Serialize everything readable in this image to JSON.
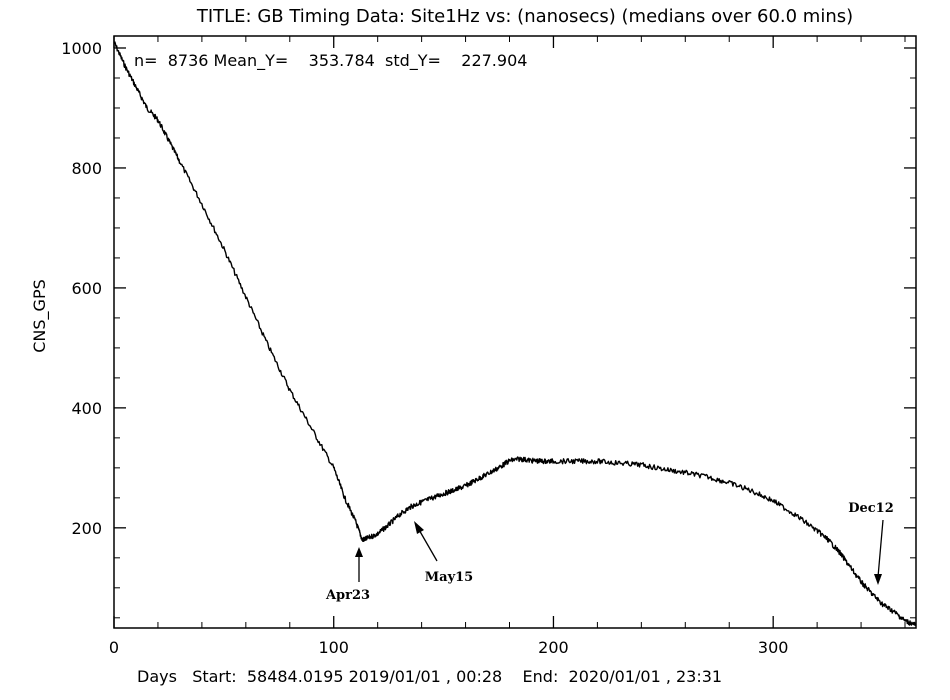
{
  "chart_data": {
    "type": "line",
    "title": "TITLE: GB Timing Data: Site1Hz vs: (nanosecs) (medians over 60.0 mins)",
    "stats_text": "n=  8736 Mean_Y=    353.784  std_Y=    227.904",
    "xlabel": "Days   Start:  58484.0195 2019/01/01 , 00:28    End:  2020/01/01 , 23:31",
    "ylabel": "CNS_GPS",
    "xlim": [
      0,
      365
    ],
    "ylim": [
      33,
      1020
    ],
    "x_ticks": [
      0,
      100,
      200,
      300
    ],
    "x_tick_labels": [
      "0",
      "100",
      "200",
      "300"
    ],
    "y_ticks": [
      200,
      400,
      600,
      800,
      1000
    ],
    "y_tick_labels": [
      "200",
      "400",
      "600",
      "800",
      "1000"
    ],
    "grid": false,
    "series": [
      {
        "values_x": [
          0,
          5,
          10,
          15,
          20,
          25,
          30,
          40,
          50,
          60,
          70,
          80,
          90,
          100,
          105,
          110,
          113,
          115,
          120,
          125,
          130,
          135,
          140,
          145,
          150,
          155,
          160,
          165,
          170,
          175,
          180,
          185,
          190,
          195,
          200,
          210,
          220,
          230,
          240,
          250,
          260,
          270,
          280,
          290,
          300,
          310,
          320,
          325,
          330,
          335,
          340,
          345,
          350,
          355,
          360,
          365
        ],
        "values_y": [
          1010,
          970,
          935,
          900,
          880,
          845,
          810,
          740,
          665,
          585,
          505,
          430,
          365,
          300,
          250,
          210,
          180,
          182,
          190,
          205,
          222,
          235,
          243,
          250,
          257,
          263,
          270,
          280,
          290,
          300,
          312,
          315,
          312,
          311,
          311,
          311,
          311,
          308,
          305,
          298,
          292,
          285,
          275,
          262,
          245,
          222,
          195,
          180,
          160,
          135,
          110,
          90,
          72,
          60,
          45,
          38
        ]
      }
    ],
    "annotations": [
      {
        "text": "Apr23",
        "x": 113,
        "y": 178
      },
      {
        "text": "May15",
        "x": 135,
        "y": 232
      },
      {
        "text": "Dec12",
        "x": 346,
        "y": 68
      }
    ]
  }
}
